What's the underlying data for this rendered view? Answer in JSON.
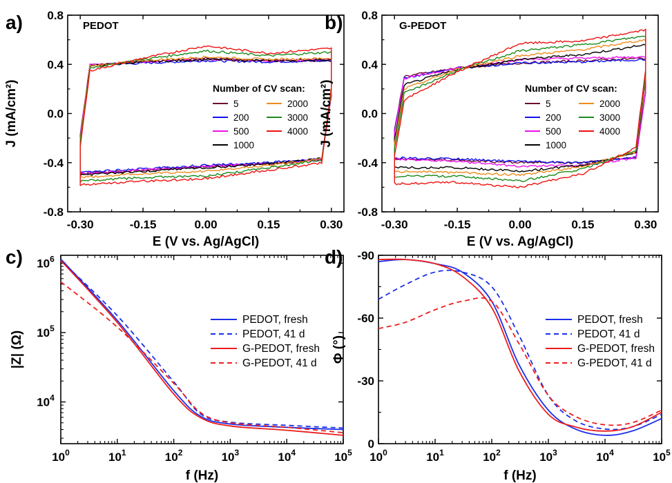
{
  "figure": {
    "panels": [
      {
        "letter": "a)",
        "name": "PEDOT"
      },
      {
        "letter": "b)",
        "name": "G-PEDOT"
      },
      {
        "letter": "c)",
        "name": ""
      },
      {
        "letter": "d)",
        "name": ""
      }
    ]
  },
  "chart_data": [
    {
      "id": "a",
      "type": "line",
      "title": "PEDOT",
      "xlabel": "E (V vs. Ag/AgCl)",
      "ylabel": "J (mA/cm²)",
      "xlim": [
        -0.33,
        0.33
      ],
      "ylim": [
        -0.8,
        0.8
      ],
      "xticks": [
        -0.3,
        -0.15,
        0.0,
        0.15,
        0.3
      ],
      "xtick_labels": [
        "-0.30",
        "-0.15",
        "0.00",
        "0.15",
        "0.30"
      ],
      "yticks": [
        -0.8,
        -0.4,
        0.0,
        0.4,
        0.8
      ],
      "ytick_labels": [
        "-0.8",
        "-0.4",
        "0.0",
        "0.4",
        "0.8"
      ],
      "grid": false,
      "legend": {
        "title": "Number of CV scan:",
        "placement": "center-right",
        "columns": 2
      },
      "x": [
        -0.3,
        -0.15,
        0.0,
        0.15,
        0.3
      ],
      "series": [
        {
          "name": "5",
          "color": "#6a0d2b",
          "upper": [
            0.39,
            0.42,
            0.45,
            0.43,
            0.43
          ],
          "lower": [
            -0.49,
            -0.46,
            -0.43,
            -0.41,
            -0.37
          ]
        },
        {
          "name": "200",
          "color": "#1010ee",
          "upper": [
            0.39,
            0.41,
            0.43,
            0.42,
            0.43
          ],
          "lower": [
            -0.48,
            -0.45,
            -0.42,
            -0.4,
            -0.36
          ]
        },
        {
          "name": "500",
          "color": "#ee10ee",
          "upper": [
            0.4,
            0.42,
            0.44,
            0.43,
            0.44
          ],
          "lower": [
            -0.49,
            -0.46,
            -0.43,
            -0.41,
            -0.37
          ]
        },
        {
          "name": "1000",
          "color": "#000000",
          "upper": [
            0.38,
            0.42,
            0.44,
            0.43,
            0.44
          ],
          "lower": [
            -0.5,
            -0.47,
            -0.44,
            -0.41,
            -0.36
          ]
        },
        {
          "name": "2000",
          "color": "#ef8a1b",
          "upper": [
            0.38,
            0.43,
            0.46,
            0.44,
            0.45
          ],
          "lower": [
            -0.52,
            -0.49,
            -0.47,
            -0.42,
            -0.36
          ]
        },
        {
          "name": "3000",
          "color": "#1b8a1b",
          "upper": [
            0.36,
            0.44,
            0.51,
            0.47,
            0.5
          ],
          "lower": [
            -0.55,
            -0.52,
            -0.51,
            -0.44,
            -0.37
          ]
        },
        {
          "name": "4000",
          "color": "#ee1111",
          "upper": [
            0.33,
            0.45,
            0.55,
            0.49,
            0.53
          ],
          "lower": [
            -0.58,
            -0.55,
            -0.53,
            -0.46,
            -0.39
          ]
        }
      ]
    },
    {
      "id": "b",
      "type": "line",
      "title": "G-PEDOT",
      "xlabel": "E (V vs. Ag/AgCl)",
      "ylabel": "J (mA/cm²)",
      "xlim": [
        -0.33,
        0.33
      ],
      "ylim": [
        -0.8,
        0.8
      ],
      "xticks": [
        -0.3,
        -0.15,
        0.0,
        0.15,
        0.3
      ],
      "xtick_labels": [
        "-0.30",
        "-0.15",
        "0.00",
        "0.15",
        "0.30"
      ],
      "yticks": [
        -0.8,
        -0.4,
        0.0,
        0.4,
        0.8
      ],
      "ytick_labels": [
        "-0.8",
        "-0.4",
        "0.0",
        "0.4",
        "0.8"
      ],
      "grid": false,
      "legend": {
        "title": "Number of CV scan:",
        "placement": "center-right",
        "columns": 2
      },
      "x": [
        -0.3,
        -0.15,
        0.0,
        0.15,
        0.3
      ],
      "series": [
        {
          "name": "5",
          "color": "#6a0d2b",
          "upper": [
            0.29,
            0.37,
            0.41,
            0.43,
            0.45
          ],
          "lower": [
            -0.37,
            -0.38,
            -0.4,
            -0.4,
            -0.35
          ]
        },
        {
          "name": "200",
          "color": "#1010ee",
          "upper": [
            0.27,
            0.37,
            0.41,
            0.42,
            0.44
          ],
          "lower": [
            -0.36,
            -0.37,
            -0.39,
            -0.4,
            -0.35
          ]
        },
        {
          "name": "500",
          "color": "#ee10ee",
          "upper": [
            0.27,
            0.37,
            0.44,
            0.45,
            0.46
          ],
          "lower": [
            -0.37,
            -0.39,
            -0.43,
            -0.42,
            -0.35
          ]
        },
        {
          "name": "1000",
          "color": "#000000",
          "upper": [
            0.21,
            0.36,
            0.44,
            0.48,
            0.56
          ],
          "lower": [
            -0.44,
            -0.44,
            -0.47,
            -0.42,
            -0.3
          ]
        },
        {
          "name": "2000",
          "color": "#ef8a1b",
          "upper": [
            0.17,
            0.36,
            0.47,
            0.52,
            0.6
          ],
          "lower": [
            -0.47,
            -0.48,
            -0.5,
            -0.43,
            -0.29
          ]
        },
        {
          "name": "3000",
          "color": "#1b8a1b",
          "upper": [
            0.13,
            0.35,
            0.51,
            0.56,
            0.63
          ],
          "lower": [
            -0.51,
            -0.51,
            -0.55,
            -0.45,
            -0.27
          ]
        },
        {
          "name": "4000",
          "color": "#ee1111",
          "upper": [
            0.07,
            0.34,
            0.57,
            0.59,
            0.68
          ],
          "lower": [
            -0.57,
            -0.56,
            -0.6,
            -0.49,
            -0.24
          ]
        }
      ]
    },
    {
      "id": "c",
      "type": "line",
      "xlabel": "f (Hz)",
      "ylabel": "|Z| (Ω)",
      "xscale": "log",
      "yscale": "log",
      "xlim": [
        1,
        100000
      ],
      "ylim": [
        2500,
        1300000
      ],
      "xticks": [
        1,
        10,
        100,
        1000,
        10000,
        100000
      ],
      "xtick_labels": [
        {
          "base": "10",
          "exp": "0"
        },
        {
          "base": "10",
          "exp": "1"
        },
        {
          "base": "10",
          "exp": "2"
        },
        {
          "base": "10",
          "exp": "3"
        },
        {
          "base": "10",
          "exp": "4"
        },
        {
          "base": "10",
          "exp": "5"
        }
      ],
      "yticks": [
        10000,
        100000,
        1000000
      ],
      "ytick_labels": [
        {
          "base": "10",
          "exp": "4"
        },
        {
          "base": "10",
          "exp": "5"
        },
        {
          "base": "10",
          "exp": "6"
        }
      ],
      "grid": false,
      "legend": {
        "placement": "center-right"
      },
      "x": [
        1,
        10,
        100,
        300,
        1000,
        10000,
        100000
      ],
      "series": [
        {
          "name": "PEDOT, fresh",
          "color": "#1a2eea",
          "dash": "solid",
          "values": [
            1150000,
            150000,
            14500,
            6200,
            4800,
            4300,
            4000
          ]
        },
        {
          "name": "PEDOT, 41 d",
          "color": "#1a2eea",
          "dash": "dashed",
          "values": [
            1100000,
            175000,
            19500,
            6700,
            5100,
            4600,
            4200
          ]
        },
        {
          "name": "G-PEDOT, fresh",
          "color": "#ee1c1c",
          "dash": "solid",
          "values": [
            1100000,
            140000,
            13000,
            5900,
            4500,
            3900,
            3300
          ]
        },
        {
          "name": "G-PEDOT, 41 d",
          "color": "#ee1c1c",
          "dash": "dashed",
          "values": [
            540000,
            120000,
            18500,
            7000,
            5000,
            4300,
            3600
          ]
        }
      ]
    },
    {
      "id": "d",
      "type": "line",
      "xlabel": "f (Hz)",
      "ylabel": "Φ (°)",
      "xscale": "log",
      "xlim": [
        1,
        100000
      ],
      "ylim": [
        0,
        -90
      ],
      "xticks": [
        1,
        10,
        100,
        1000,
        10000,
        100000
      ],
      "xtick_labels": [
        {
          "base": "10",
          "exp": "0"
        },
        {
          "base": "10",
          "exp": "1"
        },
        {
          "base": "10",
          "exp": "2"
        },
        {
          "base": "10",
          "exp": "3"
        },
        {
          "base": "10",
          "exp": "4"
        },
        {
          "base": "10",
          "exp": "5"
        }
      ],
      "yticks": [
        0,
        -30,
        -60,
        -90
      ],
      "ytick_labels": [
        "0",
        "-30",
        "-60",
        "-90"
      ],
      "grid": false,
      "legend": {
        "placement": "center-right"
      },
      "x": [
        1,
        3,
        10,
        30,
        100,
        300,
        1000,
        3000,
        10000,
        30000,
        100000
      ],
      "series": [
        {
          "name": "PEDOT, fresh",
          "color": "#1a2eea",
          "dash": "solid",
          "values": [
            -87,
            -88,
            -86,
            -82,
            -68,
            -38,
            -16,
            -7,
            -4,
            -6,
            -12
          ]
        },
        {
          "name": "PEDOT, 41 d",
          "color": "#1a2eea",
          "dash": "dashed",
          "values": [
            -69,
            -76,
            -82,
            -82,
            -75,
            -52,
            -23,
            -11,
            -7,
            -8,
            -14
          ]
        },
        {
          "name": "G-PEDOT, fresh",
          "color": "#ee1c1c",
          "dash": "solid",
          "values": [
            -88,
            -88,
            -86,
            -80,
            -65,
            -35,
            -14,
            -8,
            -6,
            -8,
            -15
          ]
        },
        {
          "name": "G-PEDOT, 41 d",
          "color": "#ee1c1c",
          "dash": "dashed",
          "values": [
            -55,
            -58,
            -64,
            -68,
            -68,
            -48,
            -23,
            -13,
            -9,
            -10,
            -16
          ]
        }
      ]
    }
  ]
}
